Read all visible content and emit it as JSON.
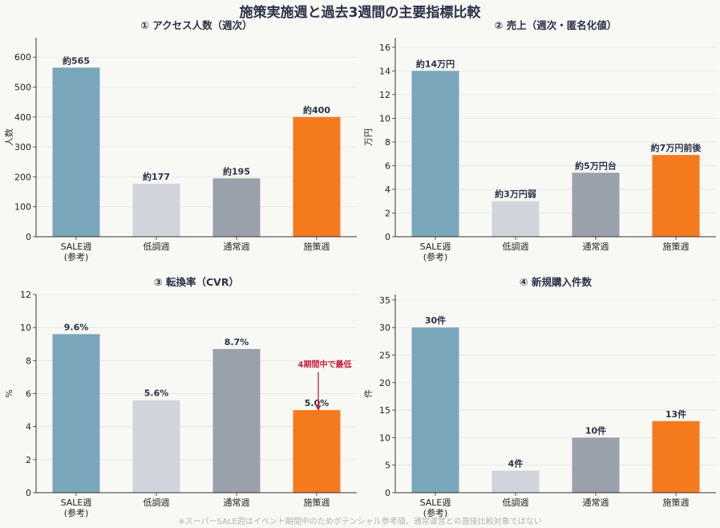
{
  "title": "施策実施週と過去3週間の主要指標比較",
  "footnote": "※スーパーSALE週はイベント期間中のためポテンシャル参考値。通常運営との直接比較対象ではない",
  "chart_data": [
    {
      "type": "bar",
      "title": "① アクセス人数（週次）",
      "ylabel": "人数",
      "categories": [
        "SALE週\n(参考)",
        "低調週",
        "通常週",
        "施策週"
      ],
      "values": [
        565,
        177,
        195,
        400
      ],
      "data_labels": [
        "約565",
        "約177",
        "約195",
        "約400"
      ],
      "colors": [
        "#7aa6bc",
        "#d2d4dc",
        "#9aa0ac",
        "#f57a1e"
      ],
      "ylim": [
        0,
        665
      ],
      "yticks": [
        0,
        100,
        200,
        300,
        400,
        500,
        600
      ],
      "grid": true
    },
    {
      "type": "bar",
      "title": "② 売上（週次・匿名化値）",
      "ylabel": "万円",
      "categories": [
        "SALE週\n(参考)",
        "低調週",
        "通常週",
        "施策週"
      ],
      "values": [
        14,
        3,
        5.4,
        6.9
      ],
      "data_labels": [
        "約14万円",
        "約3万円弱",
        "約5万円台",
        "約7万円前後"
      ],
      "colors": [
        "#7aa6bc",
        "#d2d4dc",
        "#9aa0ac",
        "#f57a1e"
      ],
      "ylim": [
        0,
        16.8
      ],
      "yticks": [
        0,
        2,
        4,
        6,
        8,
        10,
        12,
        14,
        16
      ],
      "grid": true
    },
    {
      "type": "bar",
      "title": "③ 転換率（CVR）",
      "ylabel": "%",
      "categories": [
        "SALE週\n(参考)",
        "低調週",
        "通常週",
        "施策週"
      ],
      "values": [
        9.6,
        5.6,
        8.7,
        5.0
      ],
      "data_labels": [
        "9.6%",
        "5.6%",
        "8.7%",
        "5.0%"
      ],
      "colors": [
        "#7aa6bc",
        "#d2d4dc",
        "#9aa0ac",
        "#f57a1e"
      ],
      "ylim": [
        0,
        12
      ],
      "yticks": [
        0,
        2,
        4,
        6,
        8,
        10,
        12
      ],
      "grid": true,
      "annotation": {
        "text": "4期間中で最低",
        "target_index": 3,
        "at": [
          3.1,
          7.6
        ],
        "color": "#c81e3a"
      }
    },
    {
      "type": "bar",
      "title": "④ 新規購入件数",
      "ylabel": "件",
      "categories": [
        "SALE週\n(参考)",
        "低調週",
        "通常週",
        "施策週"
      ],
      "values": [
        30,
        4,
        10,
        13
      ],
      "data_labels": [
        "30件",
        "4件",
        "10件",
        "13件"
      ],
      "colors": [
        "#7aa6bc",
        "#d2d4dc",
        "#9aa0ac",
        "#f57a1e"
      ],
      "ylim": [
        0,
        36
      ],
      "yticks": [
        0,
        5,
        10,
        15,
        20,
        25,
        30,
        35
      ],
      "grid": true
    }
  ]
}
